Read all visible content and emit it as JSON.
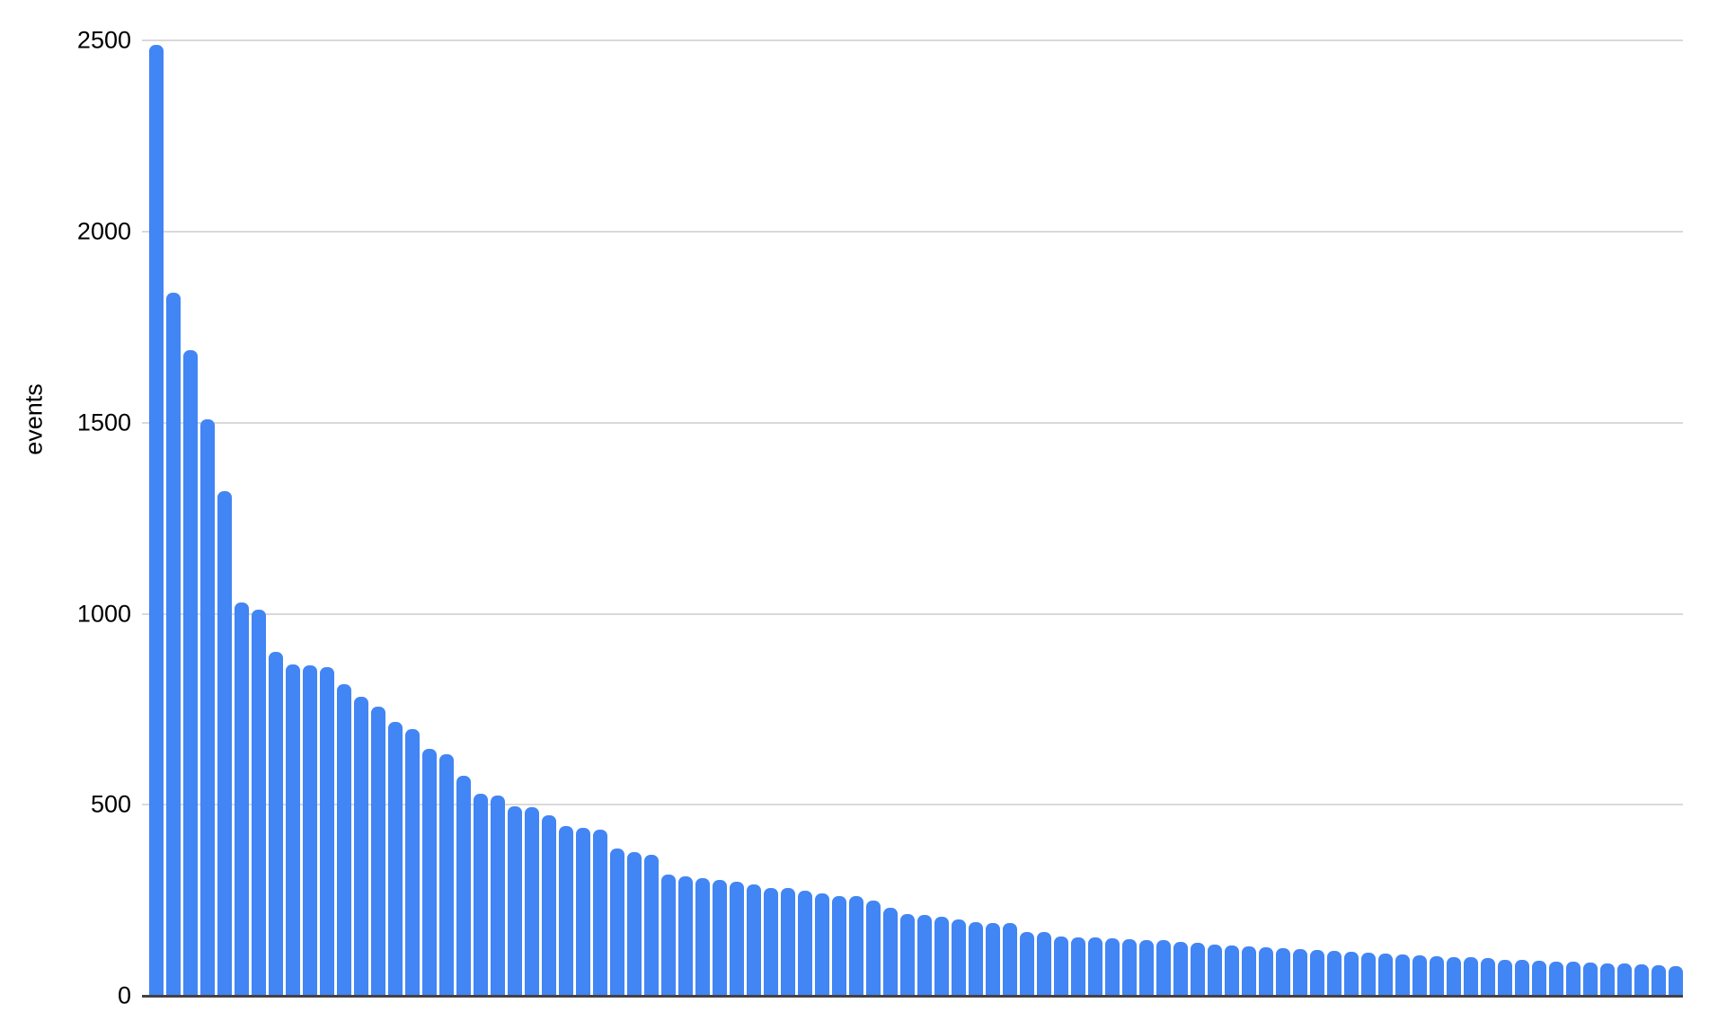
{
  "chart_data": {
    "type": "bar",
    "title": "",
    "xlabel": "",
    "ylabel": "events",
    "ylim": [
      0,
      2500
    ],
    "yticks": [
      0,
      500,
      1000,
      1500,
      2000,
      2500
    ],
    "grid": true,
    "legend_visible": false,
    "x_tick_labels_visible": false,
    "bar_color": "#4285F4",
    "gridline_color": "#d9d9d9",
    "axis_line_color": "#424242",
    "values": [
      2490,
      1840,
      1690,
      1510,
      1320,
      1030,
      1010,
      900,
      868,
      865,
      860,
      815,
      782,
      757,
      716,
      698,
      646,
      632,
      576,
      529,
      523,
      496,
      494,
      472,
      445,
      439,
      434,
      385,
      375,
      370,
      318,
      312,
      309,
      303,
      299,
      291,
      283,
      281,
      275,
      267,
      262,
      260,
      248,
      230,
      213,
      211,
      207,
      200,
      192,
      191,
      190,
      168,
      166,
      154,
      153,
      152,
      150,
      147,
      145,
      145,
      140,
      138,
      135,
      132,
      130,
      127,
      125,
      122,
      120,
      118,
      115,
      112,
      110,
      108,
      105,
      103,
      100,
      100,
      98,
      95,
      95,
      92,
      90,
      90,
      88,
      85,
      85,
      82,
      80,
      78
    ]
  }
}
